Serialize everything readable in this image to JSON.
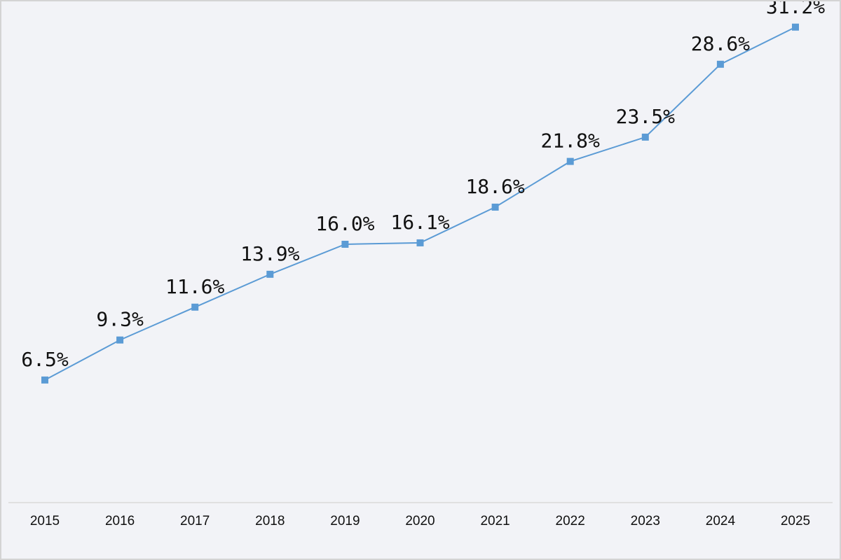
{
  "chart_data": {
    "type": "line",
    "title": "",
    "xlabel": "",
    "ylabel": "",
    "categories": [
      "2015",
      "2016",
      "2017",
      "2018",
      "2019",
      "2020",
      "2021",
      "2022",
      "2023",
      "2024",
      "2025"
    ],
    "series": [
      {
        "values": [
          6.5,
          9.3,
          11.6,
          13.9,
          16.0,
          16.1,
          18.6,
          21.8,
          23.5,
          28.6,
          31.2
        ],
        "data_labels": [
          "6.5%",
          "9.3%",
          "11.6%",
          "13.9%",
          "16.0%",
          "16.1%",
          "18.6%",
          "21.8%",
          "23.5%",
          "28.6%",
          "31.2%"
        ],
        "color": "#5b9bd5",
        "marker": "square"
      }
    ],
    "ylim": [
      -6,
      33
    ],
    "grid": false,
    "legend": "none",
    "background": "#f2f3f7",
    "axis_color": "#d9d9d9"
  }
}
